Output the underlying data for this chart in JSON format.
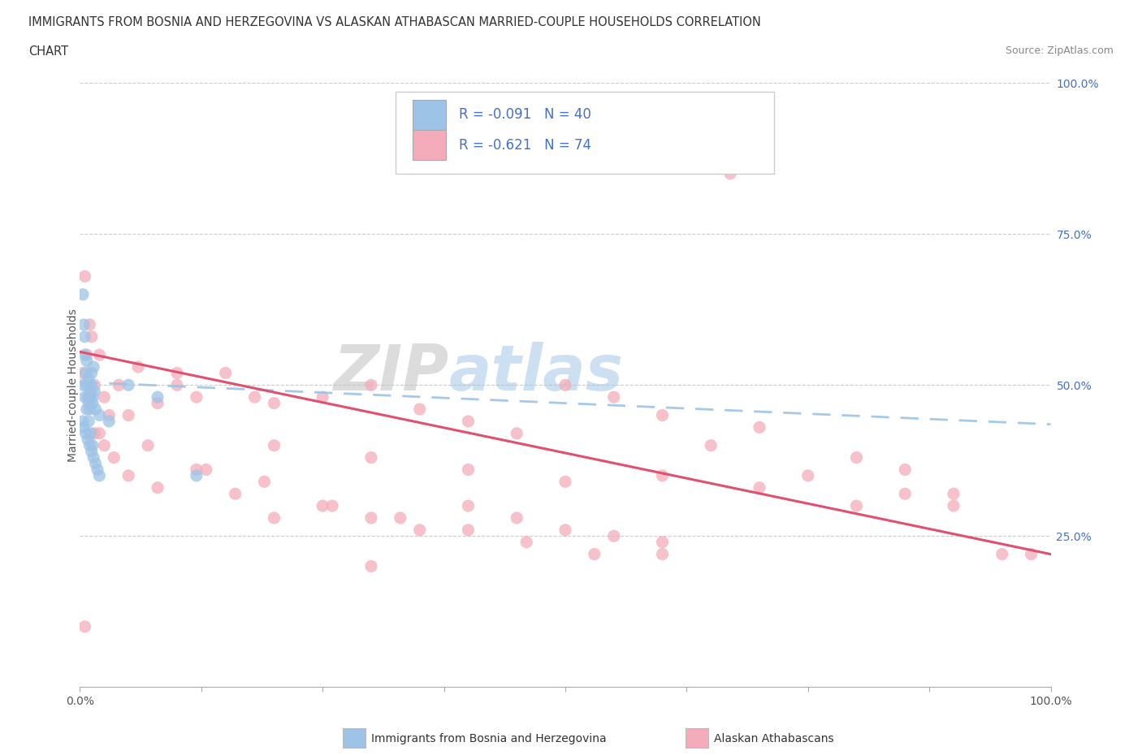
{
  "title_line1": "IMMIGRANTS FROM BOSNIA AND HERZEGOVINA VS ALASKAN ATHABASCAN MARRIED-COUPLE HOUSEHOLDS CORRELATION",
  "title_line2": "CHART",
  "source_text": "Source: ZipAtlas.com",
  "ylabel": "Married-couple Households",
  "right_ytick_labels": [
    "100.0%",
    "75.0%",
    "50.0%",
    "25.0%"
  ],
  "right_ytick_values": [
    1.0,
    0.75,
    0.5,
    0.25
  ],
  "legend_label1": "Immigrants from Bosnia and Herzegovina",
  "legend_label2": "Alaskan Athabascans",
  "R1": "-0.091",
  "N1": "40",
  "R2": "-0.621",
  "N2": "74",
  "blue_color": "#9DC3E6",
  "pink_color": "#F4ACBA",
  "blue_line_color": "#9DC3E6",
  "pink_line_color": "#E05070",
  "label_color": "#4472C4",
  "title_color": "#333333",
  "grid_color": "#CCCCCC",
  "blue_x": [
    0.003,
    0.004,
    0.005,
    0.006,
    0.007,
    0.008,
    0.009,
    0.01,
    0.011,
    0.012,
    0.013,
    0.014,
    0.015,
    0.016,
    0.005,
    0.007,
    0.009,
    0.011,
    0.013,
    0.003,
    0.004,
    0.006,
    0.008,
    0.01,
    0.012,
    0.014,
    0.016,
    0.018,
    0.02,
    0.003,
    0.005,
    0.007,
    0.009,
    0.011,
    0.013,
    0.02,
    0.03,
    0.05,
    0.08,
    0.12
  ],
  "blue_y": [
    0.65,
    0.6,
    0.55,
    0.52,
    0.5,
    0.48,
    0.47,
    0.46,
    0.5,
    0.52,
    0.48,
    0.53,
    0.49,
    0.46,
    0.58,
    0.54,
    0.51,
    0.49,
    0.47,
    0.44,
    0.43,
    0.42,
    0.41,
    0.4,
    0.39,
    0.38,
    0.37,
    0.36,
    0.35,
    0.5,
    0.48,
    0.46,
    0.44,
    0.42,
    0.4,
    0.45,
    0.44,
    0.5,
    0.48,
    0.35
  ],
  "pink_x": [
    0.003,
    0.005,
    0.007,
    0.01,
    0.012,
    0.015,
    0.02,
    0.025,
    0.03,
    0.04,
    0.06,
    0.08,
    0.1,
    0.12,
    0.15,
    0.18,
    0.2,
    0.25,
    0.3,
    0.35,
    0.4,
    0.45,
    0.5,
    0.55,
    0.6,
    0.65,
    0.7,
    0.75,
    0.8,
    0.85,
    0.9,
    0.95,
    0.98,
    0.01,
    0.02,
    0.05,
    0.1,
    0.2,
    0.3,
    0.4,
    0.5,
    0.6,
    0.7,
    0.8,
    0.85,
    0.9,
    0.005,
    0.015,
    0.025,
    0.035,
    0.05,
    0.08,
    0.12,
    0.16,
    0.2,
    0.25,
    0.3,
    0.35,
    0.4,
    0.45,
    0.5,
    0.55,
    0.6,
    0.07,
    0.13,
    0.19,
    0.26,
    0.33,
    0.4,
    0.46,
    0.53,
    0.6,
    0.67,
    0.3
  ],
  "pink_y": [
    0.52,
    0.68,
    0.55,
    0.6,
    0.58,
    0.5,
    0.55,
    0.48,
    0.45,
    0.5,
    0.53,
    0.47,
    0.52,
    0.48,
    0.52,
    0.48,
    0.47,
    0.48,
    0.5,
    0.46,
    0.44,
    0.42,
    0.5,
    0.48,
    0.45,
    0.4,
    0.43,
    0.35,
    0.38,
    0.36,
    0.32,
    0.22,
    0.22,
    0.48,
    0.42,
    0.45,
    0.5,
    0.4,
    0.38,
    0.36,
    0.34,
    0.35,
    0.33,
    0.3,
    0.32,
    0.3,
    0.1,
    0.42,
    0.4,
    0.38,
    0.35,
    0.33,
    0.36,
    0.32,
    0.28,
    0.3,
    0.28,
    0.26,
    0.3,
    0.28,
    0.26,
    0.25,
    0.24,
    0.4,
    0.36,
    0.34,
    0.3,
    0.28,
    0.26,
    0.24,
    0.22,
    0.22,
    0.85,
    0.2
  ]
}
